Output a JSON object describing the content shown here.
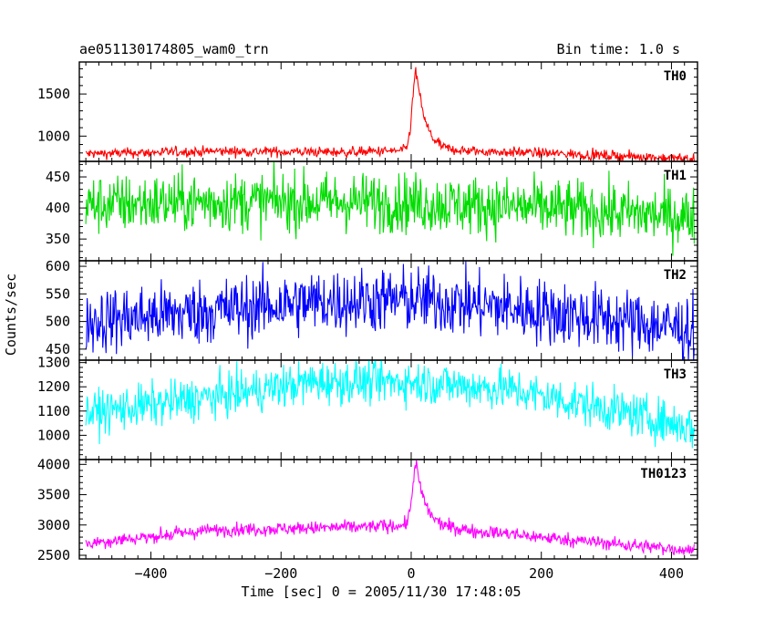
{
  "title_left": "ae051130174805_wam0_trn",
  "title_right": "Bin time: 1.0 s",
  "chart_data": {
    "type": "line",
    "xlabel": "Time [sec] 0 = 2005/11/30 17:48:05",
    "ylabel": "Counts/sec",
    "xlim": [
      -510,
      440
    ],
    "x_ticks": [
      -400,
      -200,
      0,
      200,
      400
    ],
    "panels": [
      {
        "name": "TH0",
        "color": "#ff0000",
        "ylim": [
          700,
          1880
        ],
        "y_ticks": [
          1000,
          1500
        ],
        "baseline": [
          [
            -500,
            790
          ],
          [
            -300,
            820
          ],
          [
            -100,
            810
          ],
          [
            0,
            830
          ],
          [
            100,
            820
          ],
          [
            200,
            800
          ],
          [
            300,
            770
          ],
          [
            435,
            730
          ]
        ],
        "noise": 30,
        "peak": {
          "x": 8,
          "height": 1000,
          "rise": 6,
          "decay": 14
        }
      },
      {
        "name": "TH1",
        "color": "#00dd00",
        "ylim": [
          315,
          475
        ],
        "y_ticks": [
          350,
          400,
          450
        ],
        "baseline": [
          [
            -500,
            405
          ],
          [
            -300,
            410
          ],
          [
            -100,
            410
          ],
          [
            0,
            408
          ],
          [
            200,
            400
          ],
          [
            435,
            385
          ]
        ],
        "noise": 24
      },
      {
        "name": "TH2",
        "color": "#0000ff",
        "ylim": [
          430,
          610
        ],
        "y_ticks": [
          450,
          500,
          550,
          600
        ],
        "baseline": [
          [
            -500,
            500
          ],
          [
            -300,
            520
          ],
          [
            -150,
            535
          ],
          [
            0,
            540
          ],
          [
            150,
            525
          ],
          [
            300,
            505
          ],
          [
            435,
            485
          ]
        ],
        "noise": 30
      },
      {
        "name": "TH3",
        "color": "#00ffff",
        "ylim": [
          900,
          1310
        ],
        "y_ticks": [
          1000,
          1100,
          1200,
          1300
        ],
        "baseline": [
          [
            -500,
            1090
          ],
          [
            -300,
            1160
          ],
          [
            -150,
            1220
          ],
          [
            0,
            1220
          ],
          [
            150,
            1190
          ],
          [
            300,
            1110
          ],
          [
            435,
            1030
          ]
        ],
        "noise": 45
      },
      {
        "name": "TH0123",
        "color": "#ff00ff",
        "ylim": [
          2440,
          4080
        ],
        "y_ticks": [
          2500,
          3000,
          3500,
          4000
        ],
        "baseline": [
          [
            -500,
            2700
          ],
          [
            -300,
            2920
          ],
          [
            -100,
            2960
          ],
          [
            0,
            3000
          ],
          [
            100,
            2900
          ],
          [
            200,
            2800
          ],
          [
            300,
            2700
          ],
          [
            435,
            2580
          ]
        ],
        "noise": 55,
        "peak": {
          "x": 8,
          "height": 1050,
          "rise": 6,
          "decay": 14
        }
      }
    ]
  }
}
